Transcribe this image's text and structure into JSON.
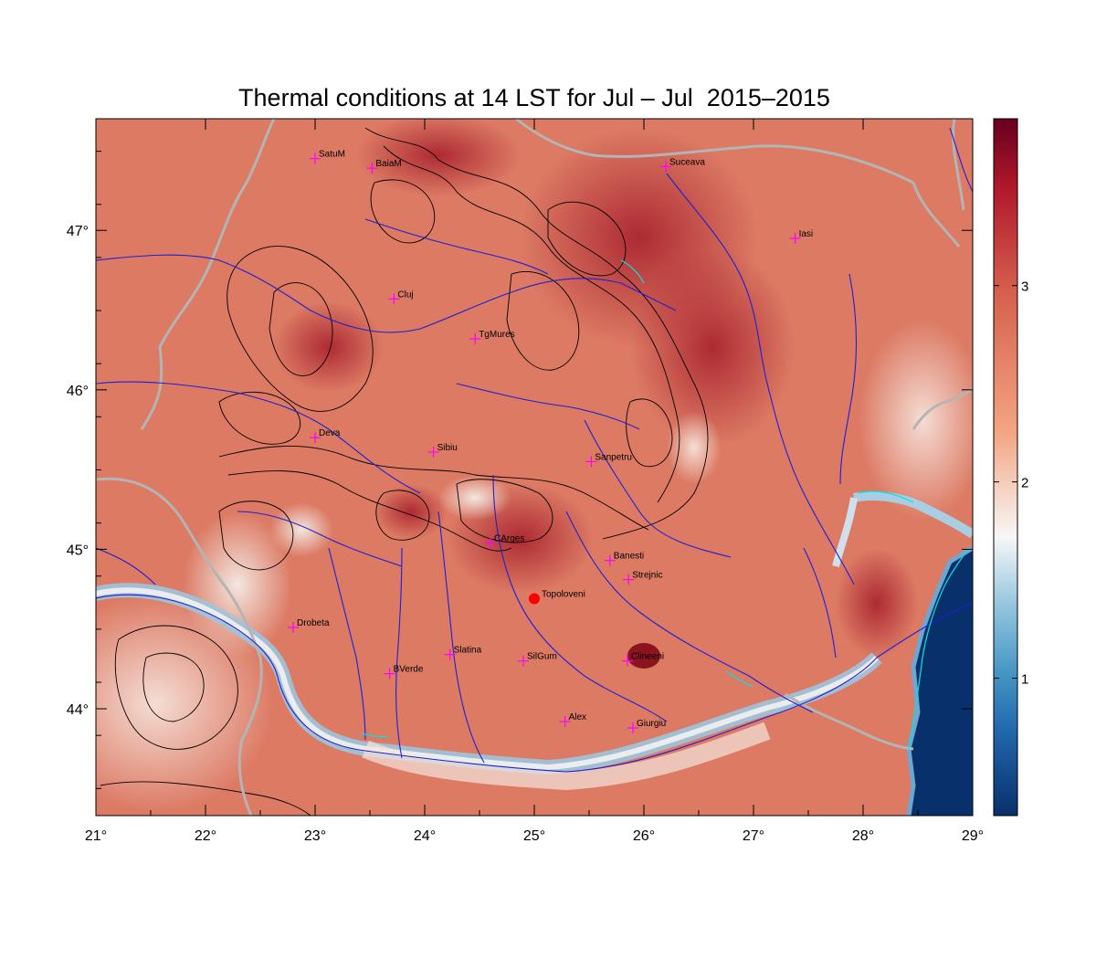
{
  "title": "Thermal conditions at 14 LST for Jul – Jul  2015–2015",
  "map": {
    "lon_range": [
      21,
      29
    ],
    "lat_range": [
      43.33,
      47.7
    ],
    "x_ticks": [
      {
        "value": 21,
        "label": "21°"
      },
      {
        "value": 22,
        "label": "22°"
      },
      {
        "value": 23,
        "label": "23°"
      },
      {
        "value": 24,
        "label": "24°"
      },
      {
        "value": 25,
        "label": "25°"
      },
      {
        "value": 26,
        "label": "26°"
      },
      {
        "value": 27,
        "label": "27°"
      },
      {
        "value": 28,
        "label": "28°"
      },
      {
        "value": 29,
        "label": "29°"
      }
    ],
    "y_ticks": [
      {
        "value": 44,
        "label": "44°"
      },
      {
        "value": 45,
        "label": "45°"
      },
      {
        "value": 46,
        "label": "46°"
      },
      {
        "value": 47,
        "label": "47°"
      }
    ],
    "cities": [
      {
        "name": "SatuM",
        "lon": 23.0,
        "lat": 47.45
      },
      {
        "name": "BaiaM",
        "lon": 23.52,
        "lat": 47.39
      },
      {
        "name": "Suceava",
        "lon": 26.2,
        "lat": 47.4
      },
      {
        "name": "Iasi",
        "lon": 27.38,
        "lat": 46.95
      },
      {
        "name": "Cluj",
        "lon": 23.72,
        "lat": 46.57
      },
      {
        "name": "TgMures",
        "lon": 24.46,
        "lat": 46.32
      },
      {
        "name": "Deva",
        "lon": 23.0,
        "lat": 45.7
      },
      {
        "name": "Sibiu",
        "lon": 24.08,
        "lat": 45.61
      },
      {
        "name": "Sanpetru",
        "lon": 25.52,
        "lat": 45.55
      },
      {
        "name": "CArges",
        "lon": 24.6,
        "lat": 45.04
      },
      {
        "name": "Banesti",
        "lon": 25.69,
        "lat": 44.93
      },
      {
        "name": "Strejnic",
        "lon": 25.86,
        "lat": 44.81
      },
      {
        "name": "Drobeta",
        "lon": 22.8,
        "lat": 44.51
      },
      {
        "name": "Slatina",
        "lon": 24.23,
        "lat": 44.34
      },
      {
        "name": "SilGum",
        "lon": 24.9,
        "lat": 44.3
      },
      {
        "name": "Calarasi",
        "display": "Clineeni",
        "lon": 25.85,
        "lat": 44.3
      },
      {
        "name": "BVerde",
        "lon": 23.68,
        "lat": 44.22
      },
      {
        "name": "Alex",
        "lon": 25.28,
        "lat": 43.92
      },
      {
        "name": "Giurgiu",
        "lon": 25.9,
        "lat": 43.88
      }
    ],
    "highlight_point": {
      "name": "Topoloveni",
      "lon": 25.0,
      "lat": 44.69,
      "color": "#ff0000"
    }
  },
  "colorbar": {
    "min": 0.3,
    "max": 3.85,
    "ticks": [
      {
        "value": 1,
        "label": "1"
      },
      {
        "value": 2,
        "label": "2"
      },
      {
        "value": 3,
        "label": "3"
      }
    ],
    "colors": [
      "#08306b",
      "#2166ac",
      "#4393c3",
      "#92c5de",
      "#f7f7f7",
      "#f4a582",
      "#d6604d",
      "#b2182b",
      "#67001f"
    ]
  },
  "colors": {
    "river": "#1f1fd6",
    "border": "#b4b4b4",
    "contour": "#000000",
    "city_marker": "#ff00ff",
    "coast": "#00e5e5"
  }
}
